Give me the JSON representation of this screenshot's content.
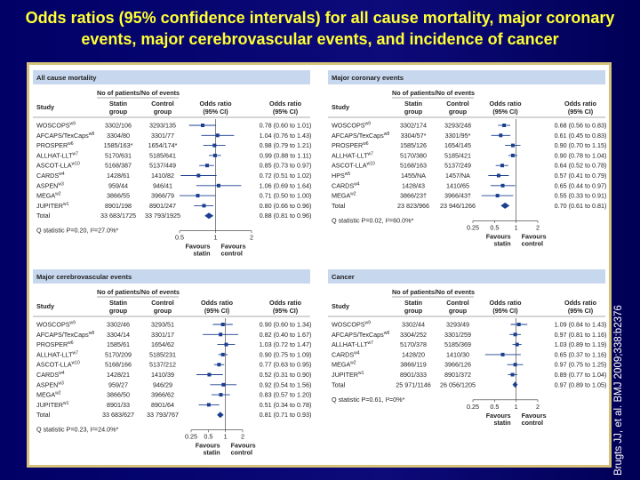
{
  "slide_title": "Odds ratios (95% confidence intervals) for all cause mortality, major coronary events, major cerebrovascular events, and incidence of cancer",
  "citation": "Brugts JJ, et al. BMJ 2009;338:b2376",
  "colors": {
    "background": "#000066",
    "title": "#ffff33",
    "frame": "#d6c27a",
    "band": "#c7d7ee",
    "marker": "#1b3f8f"
  },
  "headers": {
    "study": "Study",
    "patients_events": "No of patients/No of events",
    "statin_1": "Statin",
    "statin_2": "group",
    "control_1": "Control",
    "control_2": "group",
    "or_1": "Odds ratio",
    "or_2": "(95% CI)",
    "favours_statin_1": "Favours",
    "favours_statin_2": "statin",
    "favours_control_1": "Favours",
    "favours_control_2": "control"
  },
  "chart_data": [
    {
      "type": "forest",
      "title": "All cause mortality",
      "axis": {
        "scale": "log",
        "ticks": [
          0.5,
          1,
          2
        ],
        "tick_labels": [
          "0.5",
          "1",
          "2"
        ],
        "range": [
          0.5,
          2
        ]
      },
      "studies": [
        {
          "label": "WOSCOPS",
          "sup": "w9",
          "statin": "3302/106",
          "control": "3293/135",
          "ci_text": "0.78 (0.60 to 1.01)",
          "or": 0.78,
          "lo": 0.6,
          "hi": 1.01
        },
        {
          "label": "AFCAPS/TexCaps",
          "sup": "w8",
          "statin": "3304/80",
          "control": "3301/77",
          "ci_text": "1.04 (0.76 to 1.43)",
          "or": 1.04,
          "lo": 0.76,
          "hi": 1.43
        },
        {
          "label": "PROSPER",
          "sup": "w6",
          "statin": "1585/163*",
          "control": "1654/174*",
          "ci_text": "0.98 (0.79 to 1.21)",
          "or": 0.98,
          "lo": 0.79,
          "hi": 1.21
        },
        {
          "label": "ALLHAT-LLT",
          "sup": "w7",
          "statin": "5170/631",
          "control": "5185/641",
          "ci_text": "0.99 (0.88 to 1.11)",
          "or": 0.99,
          "lo": 0.88,
          "hi": 1.11
        },
        {
          "label": "ASCOT-LLA",
          "sup": "w10",
          "statin": "5168/387",
          "control": "5137/449",
          "ci_text": "0.85 (0.73 to 0.97)",
          "or": 0.85,
          "lo": 0.73,
          "hi": 0.97
        },
        {
          "label": "CARDS",
          "sup": "w4",
          "statin": "1428/61",
          "control": "1410/82",
          "ci_text": "0.72 (0.51 to 1.02)",
          "or": 0.72,
          "lo": 0.51,
          "hi": 1.02
        },
        {
          "label": "ASPEN",
          "sup": "w3",
          "statin": "959/44",
          "control": "946/41",
          "ci_text": "1.06 (0.69 to 1.64)",
          "or": 1.06,
          "lo": 0.69,
          "hi": 1.64
        },
        {
          "label": "MEGA",
          "sup": "w2",
          "statin": "3866/55",
          "control": "3966/79",
          "ci_text": "0.71 (0.50 to 1.00)",
          "or": 0.71,
          "lo": 0.5,
          "hi": 1.0
        },
        {
          "label": "JUPITER",
          "sup": "w1",
          "statin": "8901/198",
          "control": "8901/247",
          "ci_text": "0.80 (0.66 to 0.96)",
          "or": 0.8,
          "lo": 0.66,
          "hi": 0.96
        }
      ],
      "total": {
        "label": "Total",
        "statin": "33 683/1725",
        "control": "33 793/1925",
        "ci_text": "0.88 (0.81 to 0.96)",
        "or": 0.88,
        "lo": 0.81,
        "hi": 0.96
      },
      "q_statistic": "Q statistic P=0.20, I²=27.0%*"
    },
    {
      "type": "forest",
      "title": "Major coronary events",
      "axis": {
        "scale": "log",
        "ticks": [
          0.25,
          0.5,
          1,
          2
        ],
        "tick_labels": [
          "0.25",
          "0.5",
          "1",
          "2"
        ],
        "range": [
          0.25,
          2
        ]
      },
      "studies": [
        {
          "label": "WOSCOPS",
          "sup": "w9",
          "statin": "3302/174",
          "control": "3293/248",
          "ci_text": "0.68 (0.56 to 0.83)",
          "or": 0.68,
          "lo": 0.56,
          "hi": 0.83
        },
        {
          "label": "AFCAPS/TexCaps",
          "sup": "w8",
          "statin": "3304/57*",
          "control": "3301/95*",
          "ci_text": "0.61 (0.45 to 0.83)",
          "or": 0.61,
          "lo": 0.45,
          "hi": 0.83
        },
        {
          "label": "PROSPER",
          "sup": "w6",
          "statin": "1585/126",
          "control": "1654/145",
          "ci_text": "0.90 (0.70 to 1.15)",
          "or": 0.9,
          "lo": 0.7,
          "hi": 1.15
        },
        {
          "label": "ALLHAT-LLT",
          "sup": "w7",
          "statin": "5170/380",
          "control": "5185/421",
          "ci_text": "0.90 (0.78 to 1.04)",
          "or": 0.9,
          "lo": 0.78,
          "hi": 1.04
        },
        {
          "label": "ASCOT-LLA",
          "sup": "w10",
          "statin": "5168/163",
          "control": "5137/249",
          "ci_text": "0.64 (0.52 to 0.78)",
          "or": 0.64,
          "lo": 0.52,
          "hi": 0.78
        },
        {
          "label": "HPS",
          "sup": "w5",
          "statin": "1455/NA",
          "control": "1457/NA",
          "ci_text": "0.57 (0.41 to 0.79)",
          "or": 0.57,
          "lo": 0.41,
          "hi": 0.79
        },
        {
          "label": "CARDS",
          "sup": "w4",
          "statin": "1428/43",
          "control": "1410/65",
          "ci_text": "0.65 (0.44 to 0.97)",
          "or": 0.65,
          "lo": 0.44,
          "hi": 0.97
        },
        {
          "label": "MEGA",
          "sup": "w2",
          "statin": "3866/23†",
          "control": "3966/43†",
          "ci_text": "0.55 (0.33 to 0.91)",
          "or": 0.55,
          "lo": 0.33,
          "hi": 0.91
        }
      ],
      "total": {
        "label": "Total",
        "statin": "23 823/966",
        "control": "23 946/1266",
        "ci_text": "0.70 (0.61 to 0.81)",
        "or": 0.7,
        "lo": 0.61,
        "hi": 0.81
      },
      "q_statistic": "Q statistic P=0.02, I²=60.0%*"
    },
    {
      "type": "forest",
      "title": "Major cerebrovascular events",
      "axis": {
        "scale": "log",
        "ticks": [
          0.25,
          0.5,
          1,
          2
        ],
        "tick_labels": [
          "0.25",
          "0.5",
          "1",
          "2"
        ],
        "range": [
          0.25,
          2
        ]
      },
      "studies": [
        {
          "label": "WOSCOPS",
          "sup": "w9",
          "statin": "3302/46",
          "control": "3293/51",
          "ci_text": "0.90 (0.60 to 1.34)",
          "or": 0.9,
          "lo": 0.6,
          "hi": 1.34
        },
        {
          "label": "AFCAPS/TexCaps",
          "sup": "w8",
          "statin": "3304/14",
          "control": "3301/17",
          "ci_text": "0.82 (0.40 to 1.67)",
          "or": 0.82,
          "lo": 0.4,
          "hi": 1.67
        },
        {
          "label": "PROSPER",
          "sup": "w6",
          "statin": "1585/61",
          "control": "1654/62",
          "ci_text": "1.03 (0.72 to 1.47)",
          "or": 1.03,
          "lo": 0.72,
          "hi": 1.47
        },
        {
          "label": "ALLHAT-LLT",
          "sup": "w7",
          "statin": "5170/209",
          "control": "5185/231",
          "ci_text": "0.90 (0.75 to 1.09)",
          "or": 0.9,
          "lo": 0.75,
          "hi": 1.09
        },
        {
          "label": "ASCOT-LLA",
          "sup": "w10",
          "statin": "5168/166",
          "control": "5137/212",
          "ci_text": "0.77 (0.63 to 0.95)",
          "or": 0.77,
          "lo": 0.63,
          "hi": 0.95
        },
        {
          "label": "CARDS",
          "sup": "w4",
          "statin": "1428/21",
          "control": "1410/39",
          "ci_text": "0.52 (0.31 to 0.90)",
          "or": 0.52,
          "lo": 0.31,
          "hi": 0.9
        },
        {
          "label": "ASPEN",
          "sup": "w3",
          "statin": "959/27",
          "control": "946/29",
          "ci_text": "0.92 (0.54 to 1.56)",
          "or": 0.92,
          "lo": 0.54,
          "hi": 1.56
        },
        {
          "label": "MEGA",
          "sup": "w2",
          "statin": "3866/50",
          "control": "3966/62",
          "ci_text": "0.83 (0.57 to 1.20)",
          "or": 0.83,
          "lo": 0.57,
          "hi": 1.2
        },
        {
          "label": "JUPITER",
          "sup": "w1",
          "statin": "8901/33",
          "control": "8901/64",
          "ci_text": "0.51 (0.34 to 0.78)",
          "or": 0.51,
          "lo": 0.34,
          "hi": 0.78
        }
      ],
      "total": {
        "label": "Total",
        "statin": "33 683/627",
        "control": "33 793/767",
        "ci_text": "0.81 (0.71 to 0.93)",
        "or": 0.81,
        "lo": 0.71,
        "hi": 0.93
      },
      "q_statistic": "Q statistic P=0.23, I²=24.0%*"
    },
    {
      "type": "forest",
      "title": "Cancer",
      "axis": {
        "scale": "log",
        "ticks": [
          0.25,
          0.5,
          1,
          2
        ],
        "tick_labels": [
          "0.25",
          "0.5",
          "1",
          "2"
        ],
        "range": [
          0.25,
          2
        ]
      },
      "studies": [
        {
          "label": "WOSCOPS",
          "sup": "w9",
          "statin": "3302/44",
          "control": "3293/49",
          "ci_text": "1.09 (0.84 to 1.43)",
          "or": 1.09,
          "lo": 0.84,
          "hi": 1.43
        },
        {
          "label": "AFCAPS/TexCaps",
          "sup": "w8",
          "statin": "3304/252",
          "control": "3301/259",
          "ci_text": "0.97 (0.81 to 1.16)",
          "or": 0.97,
          "lo": 0.81,
          "hi": 1.16
        },
        {
          "label": "ALLHAT-LLT",
          "sup": "w7",
          "statin": "5170/378",
          "control": "5185/369",
          "ci_text": "1.03 (0.89 to 1.19)",
          "or": 1.03,
          "lo": 0.89,
          "hi": 1.19
        },
        {
          "label": "CARDS",
          "sup": "w4",
          "statin": "1428/20",
          "control": "1410/30",
          "ci_text": "0.65 (0.37 to 1.16)",
          "or": 0.65,
          "lo": 0.37,
          "hi": 1.16
        },
        {
          "label": "MEGA",
          "sup": "w2",
          "statin": "3866/119",
          "control": "3966/126",
          "ci_text": "0.97 (0.75 to 1.25)",
          "or": 0.97,
          "lo": 0.75,
          "hi": 1.25
        },
        {
          "label": "JUPITER",
          "sup": "w1",
          "statin": "8901/333",
          "control": "8901/372",
          "ci_text": "0.89 (0.77 to 1.04)",
          "or": 0.89,
          "lo": 0.77,
          "hi": 1.04
        }
      ],
      "total": {
        "label": "Total",
        "statin": "25 971/1146",
        "control": "26 056/1205",
        "ci_text": "0.97 (0.89 to 1.05)",
        "or": 0.97,
        "lo": 0.89,
        "hi": 1.05
      },
      "q_statistic": "Q statistic P=0.61, I²=0%*"
    }
  ]
}
